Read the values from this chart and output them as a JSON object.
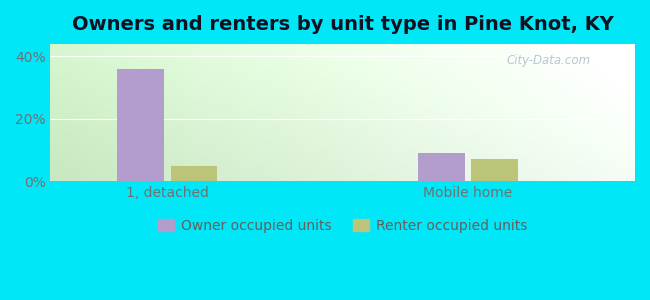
{
  "title": "Owners and renters by unit type in Pine Knot, KY",
  "categories": [
    "1, detached",
    "Mobile home"
  ],
  "owner_values": [
    36,
    9
  ],
  "renter_values": [
    5,
    7
  ],
  "owner_color": "#b39dcc",
  "renter_color": "#bcc47a",
  "bg_color": "#00e8f8",
  "ylim": [
    0,
    44
  ],
  "yticks": [
    0,
    20,
    40
  ],
  "yticklabels": [
    "0%",
    "20%",
    "40%"
  ],
  "bar_width": 0.28,
  "title_fontsize": 14,
  "tick_fontsize": 10,
  "legend_fontsize": 10,
  "watermark": "City-Data.com",
  "watermark_color": "#b8c8d0",
  "x_positions": [
    1.0,
    2.8
  ],
  "xlim": [
    0.3,
    3.8
  ]
}
